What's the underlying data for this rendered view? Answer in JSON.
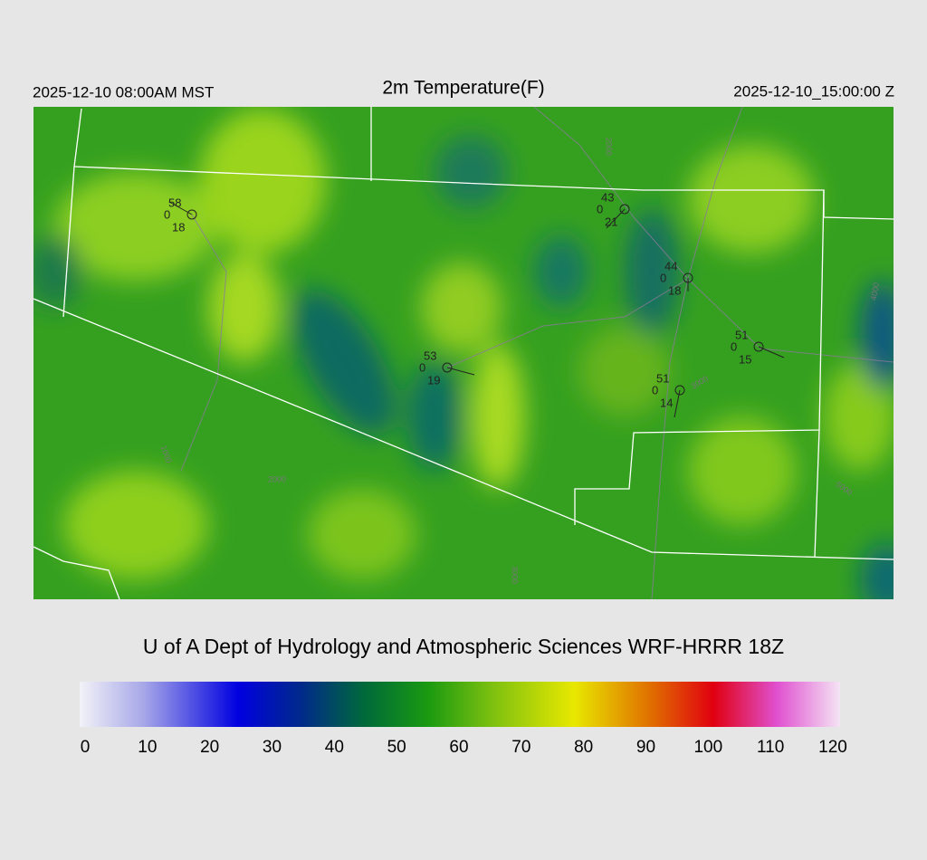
{
  "header": {
    "local_time": "2025-12-10 08:00AM MST",
    "title": "2m Temperature(F)",
    "utc_time": "2025-12-10_15:00:00 Z"
  },
  "stations": [
    {
      "temperature": 58,
      "value": 0,
      "dewpoint": 18
    },
    {
      "temperature": 43,
      "value": 0,
      "dewpoint": 21
    },
    {
      "temperature": 44,
      "value": 0,
      "dewpoint": 18
    },
    {
      "temperature": 51,
      "value": 0,
      "dewpoint": 15
    },
    {
      "temperature": 53,
      "value": 0,
      "dewpoint": 19
    },
    {
      "temperature": 51,
      "value": 0,
      "dewpoint": 14
    }
  ],
  "contour_labels": [
    "2000",
    "2000",
    "3000",
    "3000",
    "4000",
    "5000",
    "1000"
  ],
  "footer": "U of A Dept of Hydrology and Atmospheric Sciences WRF-HRRR 18Z",
  "colorbar": {
    "lim": [
      0,
      120
    ],
    "ticks": [
      0,
      10,
      20,
      30,
      40,
      50,
      60,
      70,
      80,
      90,
      100,
      110,
      120
    ],
    "stops": [
      {
        "value": 0,
        "color": "#f2f2f8"
      },
      {
        "value": 10,
        "color": "#a8a8e8"
      },
      {
        "value": 25,
        "color": "#0000e0"
      },
      {
        "value": 35,
        "color": "#002a8a"
      },
      {
        "value": 45,
        "color": "#006a3a"
      },
      {
        "value": 55,
        "color": "#1a9a10"
      },
      {
        "value": 65,
        "color": "#7cc010"
      },
      {
        "value": 78,
        "color": "#e8e800"
      },
      {
        "value": 90,
        "color": "#e07000"
      },
      {
        "value": 100,
        "color": "#e00010"
      },
      {
        "value": 110,
        "color": "#e050d0"
      },
      {
        "value": 120,
        "color": "#f4e4f4"
      }
    ]
  }
}
